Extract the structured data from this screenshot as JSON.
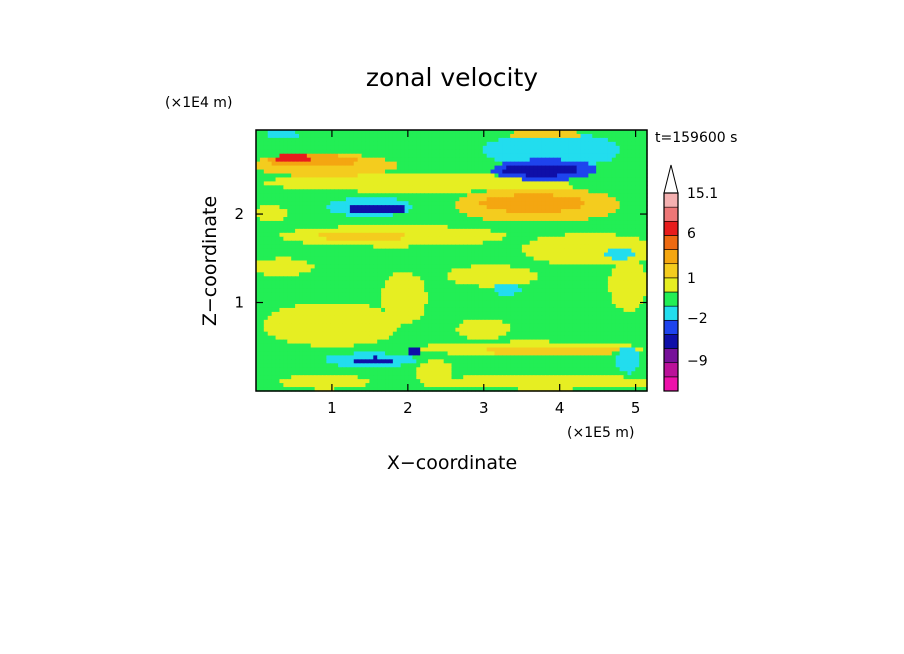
{
  "chart_data": {
    "type": "heatmap",
    "title": "zonal velocity",
    "time_label": "t=159600 s",
    "xlabel": "X−coordinate",
    "ylabel": "Z−coordinate",
    "x_unit": "(×1E5 m)",
    "y_unit": "(×1E4 m)",
    "xlim": [
      0,
      5.15
    ],
    "ylim": [
      0,
      2.95
    ],
    "x_ticks": [
      1,
      2,
      3,
      4,
      5
    ],
    "y_ticks": [
      1,
      2
    ],
    "colorbar": {
      "labels": [
        {
          "text": "15.1",
          "value": 15.1
        },
        {
          "text": "6",
          "value": 6
        },
        {
          "text": "1",
          "value": 1
        },
        {
          "text": "−2",
          "value": -2
        },
        {
          "text": "−9",
          "value": -9
        }
      ],
      "levels": [
        {
          "value": -14,
          "color": "#ee11aa"
        },
        {
          "value": -11,
          "color": "#bb1199"
        },
        {
          "value": -8,
          "color": "#771199"
        },
        {
          "value": -5,
          "color": "#0f0fa8"
        },
        {
          "value": -3,
          "color": "#1e44ee"
        },
        {
          "value": -1.5,
          "color": "#22ddee"
        },
        {
          "value": -0.5,
          "color": "#22ee55"
        },
        {
          "value": 0.5,
          "color": "#e6ee22"
        },
        {
          "value": 1.5,
          "color": "#f4cc1e"
        },
        {
          "value": 2.5,
          "color": "#f4a611"
        },
        {
          "value": 4,
          "color": "#ee6a11"
        },
        {
          "value": 7,
          "color": "#e81c1c"
        },
        {
          "value": 10,
          "color": "#ee7777"
        },
        {
          "value": 13,
          "color": "#f4b0b0"
        }
      ]
    },
    "field": {
      "background": -0.4,
      "features": [
        {
          "x": 0.9,
          "z": 2.55,
          "rx": 0.95,
          "rz": 0.13,
          "v": 1.8
        },
        {
          "x": 0.75,
          "z": 2.6,
          "rx": 0.6,
          "rz": 0.07,
          "v": 3.2
        },
        {
          "x": 0.5,
          "z": 2.63,
          "rx": 0.25,
          "rz": 0.04,
          "v": 7.5
        },
        {
          "x": 2.1,
          "z": 2.35,
          "rx": 2.0,
          "rz": 0.1,
          "v": 0.8
        },
        {
          "x": 3.9,
          "z": 2.72,
          "rx": 0.9,
          "rz": 0.2,
          "v": -1.2
        },
        {
          "x": 3.8,
          "z": 2.5,
          "rx": 0.7,
          "rz": 0.12,
          "v": -2.5
        },
        {
          "x": 3.75,
          "z": 2.5,
          "rx": 0.5,
          "rz": 0.07,
          "v": -6.0
        },
        {
          "x": 1.5,
          "z": 2.08,
          "rx": 0.55,
          "rz": 0.11,
          "v": -2.2
        },
        {
          "x": 1.6,
          "z": 2.06,
          "rx": 0.4,
          "rz": 0.06,
          "v": -6.0
        },
        {
          "x": 3.7,
          "z": 2.1,
          "rx": 1.1,
          "rz": 0.2,
          "v": 1.4
        },
        {
          "x": 3.65,
          "z": 2.12,
          "rx": 0.7,
          "rz": 0.1,
          "v": 2.6
        },
        {
          "x": 3.8,
          "z": 2.28,
          "rx": 0.4,
          "rz": 0.08,
          "v": 0.6
        },
        {
          "x": 0.2,
          "z": 2.0,
          "rx": 0.2,
          "rz": 0.1,
          "v": 0.8
        },
        {
          "x": 1.8,
          "z": 1.75,
          "rx": 1.5,
          "rz": 0.12,
          "v": 0.8
        },
        {
          "x": 1.4,
          "z": 1.75,
          "rx": 0.6,
          "rz": 0.05,
          "v": 1.6
        },
        {
          "x": 4.4,
          "z": 1.6,
          "rx": 0.9,
          "rz": 0.18,
          "v": 1.0
        },
        {
          "x": 4.8,
          "z": 1.55,
          "rx": 0.2,
          "rz": 0.06,
          "v": -1.2
        },
        {
          "x": 0.35,
          "z": 1.4,
          "rx": 0.4,
          "rz": 0.1,
          "v": 0.8
        },
        {
          "x": 3.1,
          "z": 1.3,
          "rx": 0.6,
          "rz": 0.12,
          "v": 0.8
        },
        {
          "x": 3.3,
          "z": 1.15,
          "rx": 0.18,
          "rz": 0.07,
          "v": -1.2
        },
        {
          "x": 4.9,
          "z": 1.2,
          "rx": 0.25,
          "rz": 0.3,
          "v": 0.8
        },
        {
          "x": 1.0,
          "z": 0.75,
          "rx": 0.9,
          "rz": 0.25,
          "v": 0.8
        },
        {
          "x": 1.95,
          "z": 1.05,
          "rx": 0.3,
          "rz": 0.3,
          "v": 0.8
        },
        {
          "x": 3.0,
          "z": 0.7,
          "rx": 0.35,
          "rz": 0.12,
          "v": 0.8
        },
        {
          "x": 3.6,
          "z": 0.48,
          "rx": 1.5,
          "rz": 0.08,
          "v": 0.8
        },
        {
          "x": 3.9,
          "z": 0.45,
          "rx": 1.0,
          "rz": 0.04,
          "v": 1.6
        },
        {
          "x": 1.5,
          "z": 0.35,
          "rx": 0.6,
          "rz": 0.08,
          "v": -1.2
        },
        {
          "x": 1.55,
          "z": 0.35,
          "rx": 0.3,
          "rz": 0.03,
          "v": -5.0
        },
        {
          "x": 2.1,
          "z": 0.45,
          "rx": 0.08,
          "rz": 0.05,
          "v": -5.0
        },
        {
          "x": 0.9,
          "z": 0.1,
          "rx": 0.6,
          "rz": 0.08,
          "v": 0.8
        },
        {
          "x": 2.35,
          "z": 0.2,
          "rx": 0.25,
          "rz": 0.15,
          "v": 0.8
        },
        {
          "x": 3.8,
          "z": 0.1,
          "rx": 1.5,
          "rz": 0.08,
          "v": 0.8
        },
        {
          "x": 4.9,
          "z": 0.35,
          "rx": 0.15,
          "rz": 0.15,
          "v": -1.2
        },
        {
          "x": 0.35,
          "z": 2.9,
          "rx": 0.2,
          "rz": 0.06,
          "v": -1.2
        },
        {
          "x": 3.8,
          "z": 2.9,
          "rx": 0.5,
          "rz": 0.05,
          "v": 1.6
        }
      ]
    }
  }
}
